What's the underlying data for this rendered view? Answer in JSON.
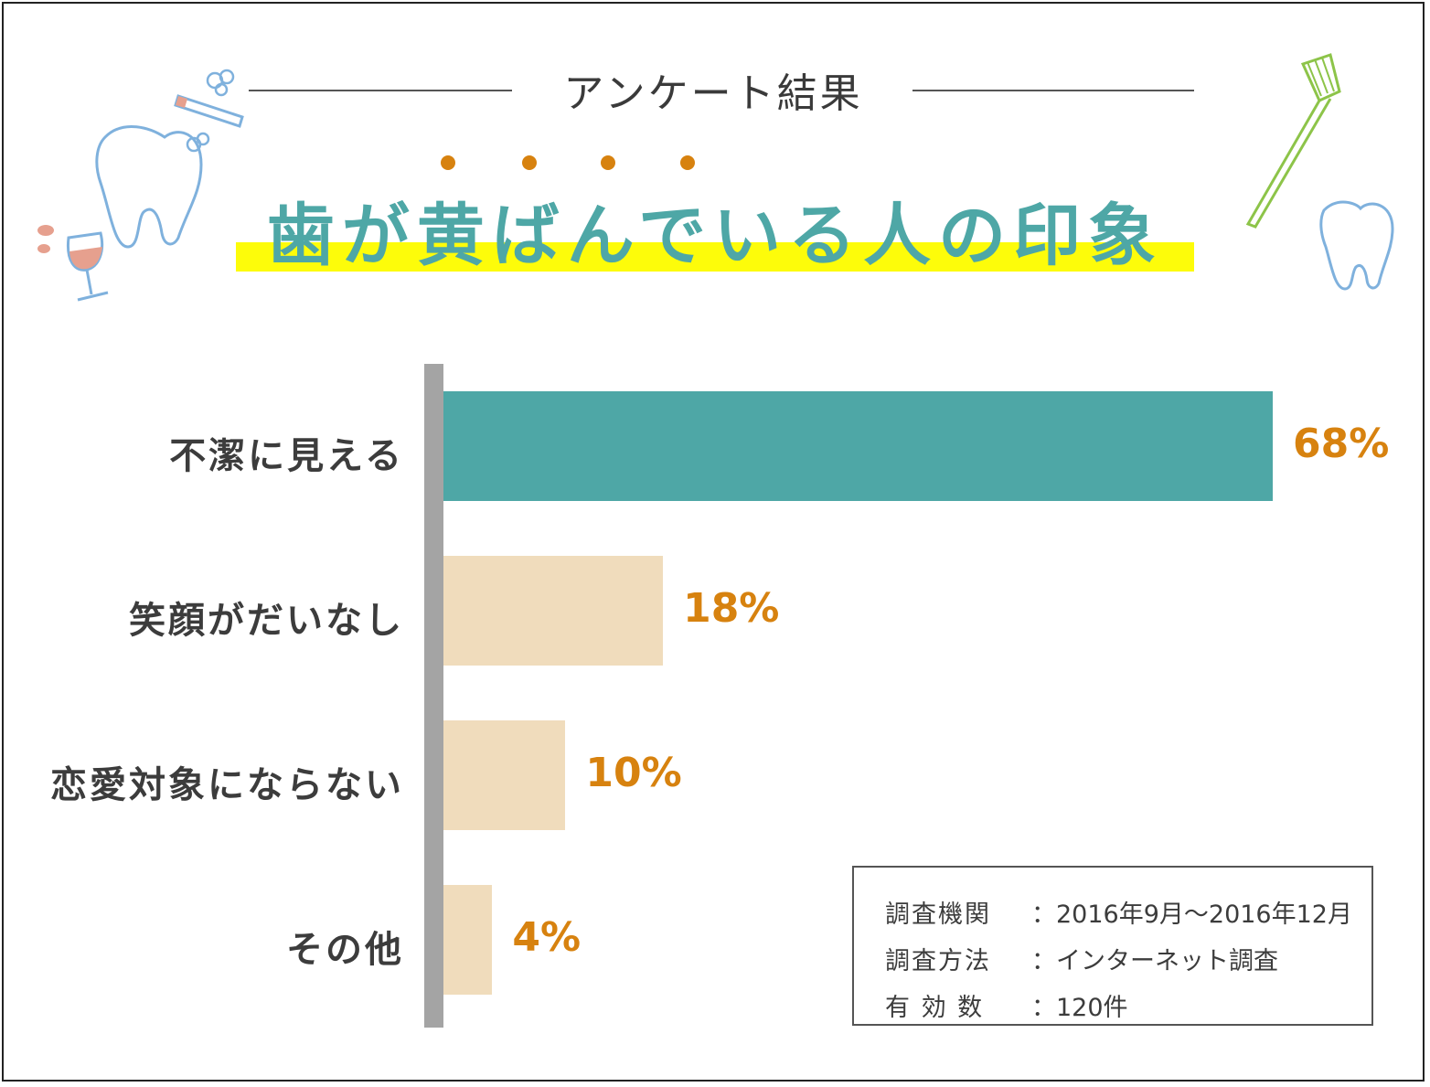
{
  "header": {
    "survey_label": "アンケート結果",
    "title": "歯が黄ばんでいる人の印象"
  },
  "colors": {
    "title": "#4ea7a6",
    "highlight": "#fdfc0a",
    "accent_orange": "#d7820f",
    "bar_primary": "#4ea7a6",
    "bar_secondary": "#f0dcbc",
    "axis": "#a4a4a4"
  },
  "chart_data": {
    "type": "bar",
    "orientation": "horizontal",
    "categories": [
      "不潔に見える",
      "笑顔がだいなし",
      "恋愛対象にならない",
      "その他"
    ],
    "values": [
      68,
      18,
      10,
      4
    ],
    "value_labels": [
      "68%",
      "18%",
      "10%",
      "4%"
    ],
    "xlim": [
      0,
      100
    ],
    "grid": false,
    "title": "歯が黄ばんでいる人の印象"
  },
  "notes": [
    {
      "key": "調査機関",
      "value": "：2016年9月～2016年12月"
    },
    {
      "key": "調査方法",
      "value": "：インターネット調査"
    },
    {
      "key": "有 効 数",
      "value": "：120件"
    }
  ],
  "decorations": [
    "tooth-icon",
    "cigarette-icon",
    "wine-glass-icon",
    "toothbrush-icon",
    "tooth-small-icon"
  ]
}
